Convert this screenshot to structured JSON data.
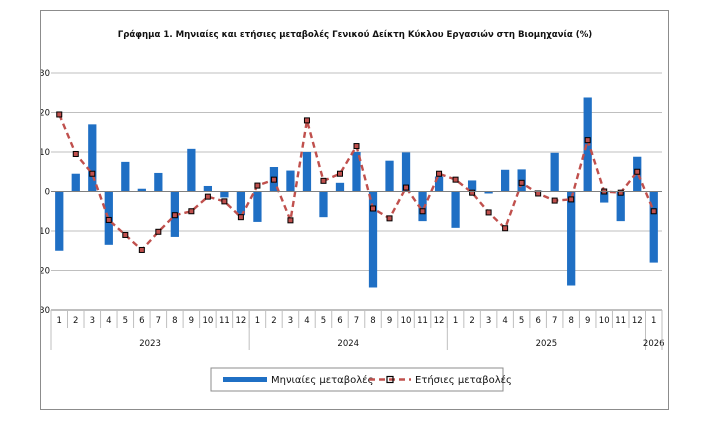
{
  "chart_data": {
    "type": "bar+line",
    "title": "Γράφημα 1. Μηνιαίες και ετήσιες μεταβολές  Γενικού Δείκτη Κύκλου Εργασιών στη Βιομηχανία (%)",
    "xlabel": "",
    "ylabel": "",
    "ylim": [
      -30,
      30
    ],
    "yticks": [
      30,
      20,
      10,
      0,
      -10,
      -20,
      -30
    ],
    "grid": true,
    "legend_position": "bottom",
    "month_labels": [
      "1",
      "2",
      "3",
      "4",
      "5",
      "6",
      "7",
      "8",
      "9",
      "10",
      "11",
      "12",
      "1",
      "2",
      "3",
      "4",
      "5",
      "6",
      "7",
      "8",
      "9",
      "10",
      "11",
      "12",
      "1",
      "2",
      "3",
      "4",
      "5",
      "6",
      "7",
      "8",
      "9",
      "10",
      "11",
      "12",
      "1"
    ],
    "year_groups": [
      {
        "label": "2023",
        "start": 0,
        "count": 12
      },
      {
        "label": "2024",
        "start": 12,
        "count": 12
      },
      {
        "label": "2025",
        "start": 24,
        "count": 12
      },
      {
        "label": "2026",
        "start": 36,
        "count": 1
      }
    ],
    "series": [
      {
        "name": "Μηνιαίες μεταβολές",
        "kind": "bar",
        "color": "#1f6fc4",
        "values": [
          -15.0,
          4.5,
          17.0,
          -13.5,
          7.5,
          0.7,
          4.7,
          -11.5,
          10.8,
          1.4,
          -1.5,
          -6.0,
          -7.7,
          6.2,
          5.3,
          10.0,
          -6.5,
          2.2,
          10.0,
          -24.3,
          7.8,
          9.9,
          -7.5,
          3.8,
          -9.2,
          2.8,
          -0.5,
          5.5,
          5.6,
          0.2,
          9.8,
          -23.8,
          23.8,
          -2.8,
          -7.5,
          8.8,
          -18.0
        ]
      },
      {
        "name": "Ετήσιες μεταβολές",
        "kind": "line",
        "color": "#c0504d",
        "values": [
          19.5,
          9.5,
          4.5,
          -7.2,
          -11.0,
          -14.8,
          -10.2,
          -6.0,
          -5.0,
          -1.3,
          -2.5,
          -6.5,
          1.5,
          3.0,
          -7.3,
          18.0,
          2.7,
          4.5,
          11.5,
          -4.3,
          -6.8,
          1.0,
          -5.0,
          4.5,
          3.0,
          -0.3,
          -5.3,
          -9.3,
          2.2,
          -0.5,
          -2.3,
          -2.0,
          13.0,
          0.0,
          -0.3,
          5.0,
          -5.0
        ]
      }
    ]
  }
}
